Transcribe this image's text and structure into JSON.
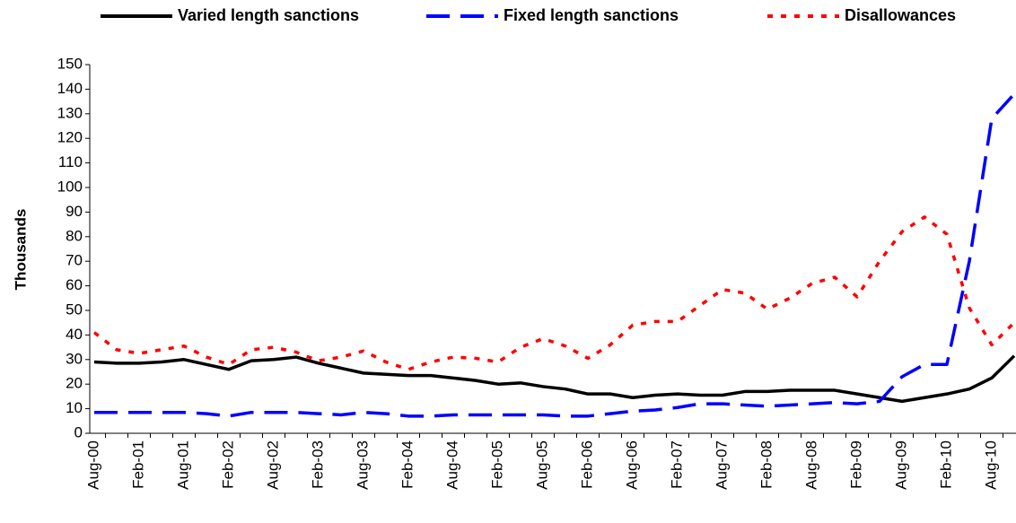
{
  "chart_data": {
    "type": "line",
    "y_label": "Thousands",
    "categories": [
      "Aug-00",
      null,
      "Feb-01",
      null,
      "Aug-01",
      null,
      "Feb-02",
      null,
      "Aug-02",
      null,
      "Feb-03",
      null,
      "Aug-03",
      null,
      "Feb-04",
      null,
      "Aug-04",
      null,
      "Feb-05",
      null,
      "Aug-05",
      null,
      "Feb-06",
      null,
      "Aug-06",
      null,
      "Feb-07",
      null,
      "Aug-07",
      null,
      "Feb-08",
      null,
      "Aug-08",
      null,
      "Feb-09",
      null,
      "Aug-09",
      null,
      "Feb-10",
      null,
      "Aug-10",
      null
    ],
    "series": [
      {
        "name": "Varied length sanctions",
        "color": "#000000",
        "dash": "solid",
        "values": [
          29,
          28.5,
          28.5,
          29,
          30,
          28,
          26,
          29.5,
          30,
          31,
          28.5,
          26.5,
          24.5,
          24,
          23.5,
          23.5,
          22.5,
          21.5,
          20,
          20.5,
          19,
          18,
          16,
          16,
          14.5,
          15.5,
          16,
          15.5,
          15.5,
          17,
          17,
          17.5,
          17.5,
          17.5,
          16,
          14.5,
          13,
          14.5,
          16,
          18,
          22.5,
          31.5
        ]
      },
      {
        "name": "Fixed length sanctions",
        "color": "#0000ff",
        "dash": "long",
        "values": [
          8.5,
          8.5,
          8.5,
          8.5,
          8.5,
          8,
          7,
          8.5,
          8.5,
          8.5,
          8,
          7.5,
          8.5,
          8,
          7,
          7,
          7.5,
          7.5,
          7.5,
          7.5,
          7.5,
          7,
          7,
          8,
          9,
          9.5,
          10.5,
          12,
          12,
          11.5,
          11,
          11.5,
          12,
          12.5,
          12,
          13,
          23,
          28,
          28,
          70,
          128,
          138
        ]
      },
      {
        "name": "Disallowances",
        "color": "#ff0000",
        "dash": "dot",
        "values": [
          41,
          34,
          32.5,
          34,
          35.5,
          31,
          28,
          34,
          35,
          33,
          29.5,
          31,
          33.5,
          29,
          26,
          29,
          31,
          30.5,
          29,
          35,
          38.5,
          35.5,
          30.5,
          36,
          44,
          45.5,
          45.5,
          52,
          58.5,
          57,
          50.5,
          55,
          61,
          63.5,
          55.5,
          70,
          82,
          88,
          81,
          51,
          36,
          45
        ]
      }
    ],
    "ylim": [
      0,
      150
    ],
    "yticks": [
      0,
      10,
      20,
      30,
      40,
      50,
      60,
      70,
      80,
      90,
      100,
      110,
      120,
      130,
      140,
      150
    ],
    "grid": false,
    "legend": "top"
  }
}
